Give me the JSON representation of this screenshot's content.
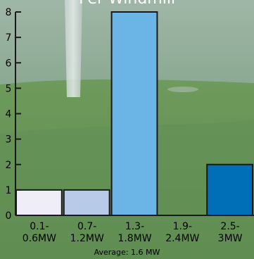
{
  "chart_data": {
    "type": "bar",
    "title": "Per Windmill",
    "categories": [
      "0.1-\n0.6MW",
      "0.7-\n1.2MW",
      "1.3-\n1.8MW",
      "1.9-\n2.4MW",
      "2.5-\n3MW"
    ],
    "values": [
      1,
      1,
      8,
      0,
      2
    ],
    "bar_colors": [
      "#efeef8",
      "#b7cbe9",
      "#6ab4e6",
      "#1f86c6",
      "#006fb8"
    ],
    "ylim": [
      0,
      8
    ],
    "yticks": [
      "0",
      "1",
      "2",
      "3",
      "4",
      "5",
      "6",
      "7",
      "8"
    ],
    "xlabel": "",
    "ylabel": "",
    "grid": false,
    "footnote": "Average: 1.6 MW"
  }
}
